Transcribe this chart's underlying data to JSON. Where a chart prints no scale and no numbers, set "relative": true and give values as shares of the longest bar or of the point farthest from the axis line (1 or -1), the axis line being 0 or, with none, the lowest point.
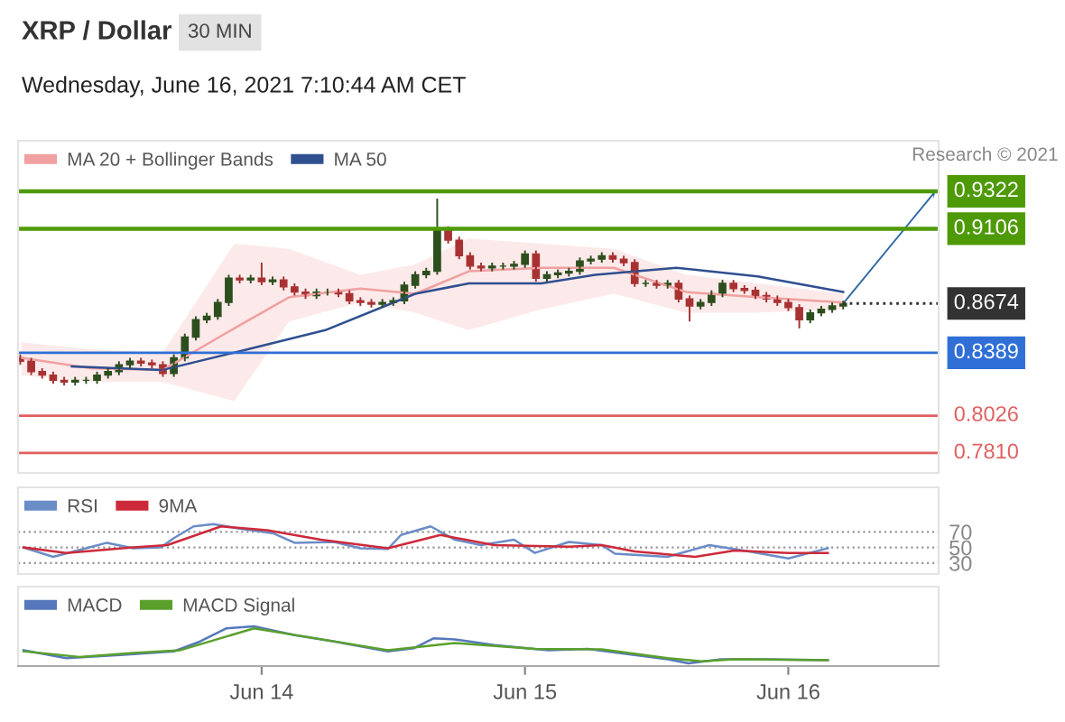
{
  "chart_data": [
    {
      "type": "candlestick",
      "title": "XRP / Dollar",
      "subtitle": "Wednesday, June 16, 2021 7:10:44 AM CET",
      "annotations": [
        "30 MIN",
        "Research © 2021"
      ],
      "x": [
        "2021-06-13T02:00",
        "2021-06-13T03:00",
        "2021-06-13T04:00",
        "2021-06-13T05:00",
        "2021-06-13T06:00",
        "2021-06-13T07:00",
        "2021-06-13T08:00",
        "2021-06-13T09:00",
        "2021-06-13T10:00",
        "2021-06-13T11:00",
        "2021-06-13T12:00",
        "2021-06-13T13:00",
        "2021-06-13T14:00",
        "2021-06-13T15:00",
        "2021-06-13T16:00",
        "2021-06-13T17:00",
        "2021-06-13T18:00",
        "2021-06-13T19:00",
        "2021-06-13T20:00",
        "2021-06-13T21:00",
        "2021-06-13T22:00",
        "2021-06-13T23:00",
        "2021-06-14T00:00",
        "2021-06-14T01:00",
        "2021-06-14T02:00",
        "2021-06-14T03:00",
        "2021-06-14T04:00",
        "2021-06-14T05:00",
        "2021-06-14T06:00",
        "2021-06-14T07:00",
        "2021-06-14T08:00",
        "2021-06-14T09:00",
        "2021-06-14T10:00",
        "2021-06-14T11:00",
        "2021-06-14T12:00",
        "2021-06-14T13:00",
        "2021-06-14T14:00",
        "2021-06-14T15:00",
        "2021-06-14T16:00",
        "2021-06-14T17:00",
        "2021-06-14T18:00",
        "2021-06-14T19:00",
        "2021-06-14T20:00",
        "2021-06-14T21:00",
        "2021-06-14T22:00",
        "2021-06-14T23:00",
        "2021-06-15T00:00",
        "2021-06-15T01:00",
        "2021-06-15T02:00",
        "2021-06-15T03:00",
        "2021-06-15T04:00",
        "2021-06-15T05:00",
        "2021-06-15T06:00",
        "2021-06-15T07:00",
        "2021-06-15T08:00",
        "2021-06-15T09:00",
        "2021-06-15T10:00",
        "2021-06-15T11:00",
        "2021-06-15T12:00",
        "2021-06-15T13:00",
        "2021-06-15T14:00",
        "2021-06-15T15:00",
        "2021-06-15T16:00",
        "2021-06-15T17:00",
        "2021-06-15T18:00",
        "2021-06-15T19:00",
        "2021-06-15T20:00",
        "2021-06-15T21:00",
        "2021-06-15T22:00",
        "2021-06-15T23:00",
        "2021-06-16T00:00",
        "2021-06-16T01:00",
        "2021-06-16T02:00",
        "2021-06-16T03:00",
        "2021-06-16T04:00",
        "2021-06-16T05:00"
      ],
      "ohlc": [
        [
          0.836,
          0.838,
          0.832,
          0.834
        ],
        [
          0.834,
          0.836,
          0.826,
          0.828
        ],
        [
          0.828,
          0.83,
          0.824,
          0.826
        ],
        [
          0.826,
          0.828,
          0.821,
          0.823
        ],
        [
          0.823,
          0.825,
          0.82,
          0.822
        ],
        [
          0.822,
          0.825,
          0.82,
          0.823
        ],
        [
          0.823,
          0.825,
          0.821,
          0.823
        ],
        [
          0.823,
          0.828,
          0.821,
          0.826
        ],
        [
          0.826,
          0.83,
          0.824,
          0.828
        ],
        [
          0.828,
          0.834,
          0.826,
          0.832
        ],
        [
          0.832,
          0.836,
          0.83,
          0.834
        ],
        [
          0.834,
          0.836,
          0.831,
          0.833
        ],
        [
          0.833,
          0.835,
          0.83,
          0.832
        ],
        [
          0.832,
          0.834,
          0.825,
          0.827
        ],
        [
          0.827,
          0.838,
          0.825,
          0.836
        ],
        [
          0.836,
          0.85,
          0.834,
          0.848
        ],
        [
          0.848,
          0.86,
          0.846,
          0.858
        ],
        [
          0.858,
          0.862,
          0.856,
          0.86
        ],
        [
          0.86,
          0.87,
          0.858,
          0.868
        ],
        [
          0.868,
          0.884,
          0.866,
          0.882
        ],
        [
          0.882,
          0.884,
          0.879,
          0.881
        ],
        [
          0.881,
          0.884,
          0.879,
          0.882
        ],
        [
          0.882,
          0.891,
          0.878,
          0.88
        ],
        [
          0.88,
          0.883,
          0.878,
          0.881
        ],
        [
          0.881,
          0.883,
          0.875,
          0.877
        ],
        [
          0.877,
          0.879,
          0.872,
          0.874
        ],
        [
          0.874,
          0.876,
          0.87,
          0.872
        ],
        [
          0.872,
          0.876,
          0.87,
          0.874
        ],
        [
          0.874,
          0.876,
          0.872,
          0.874
        ],
        [
          0.874,
          0.876,
          0.871,
          0.873
        ],
        [
          0.873,
          0.875,
          0.867,
          0.869
        ],
        [
          0.869,
          0.871,
          0.866,
          0.868
        ],
        [
          0.868,
          0.87,
          0.865,
          0.867
        ],
        [
          0.867,
          0.87,
          0.865,
          0.868
        ],
        [
          0.868,
          0.871,
          0.866,
          0.869
        ],
        [
          0.869,
          0.88,
          0.867,
          0.878
        ],
        [
          0.878,
          0.886,
          0.876,
          0.884
        ],
        [
          0.884,
          0.888,
          0.882,
          0.886
        ],
        [
          0.886,
          0.928,
          0.884,
          0.91
        ],
        [
          0.91,
          0.912,
          0.902,
          0.904
        ],
        [
          0.904,
          0.906,
          0.893,
          0.895
        ],
        [
          0.895,
          0.897,
          0.887,
          0.889
        ],
        [
          0.889,
          0.891,
          0.886,
          0.888
        ],
        [
          0.888,
          0.891,
          0.886,
          0.889
        ],
        [
          0.889,
          0.891,
          0.887,
          0.889
        ],
        [
          0.889,
          0.892,
          0.887,
          0.89
        ],
        [
          0.89,
          0.898,
          0.888,
          0.896
        ],
        [
          0.896,
          0.898,
          0.88,
          0.882
        ],
        [
          0.882,
          0.886,
          0.88,
          0.884
        ],
        [
          0.884,
          0.887,
          0.882,
          0.885
        ],
        [
          0.885,
          0.888,
          0.883,
          0.886
        ],
        [
          0.886,
          0.894,
          0.884,
          0.892
        ],
        [
          0.892,
          0.895,
          0.89,
          0.893
        ],
        [
          0.893,
          0.897,
          0.891,
          0.895
        ],
        [
          0.895,
          0.897,
          0.891,
          0.893
        ],
        [
          0.893,
          0.895,
          0.889,
          0.891
        ],
        [
          0.891,
          0.893,
          0.877,
          0.879
        ],
        [
          0.879,
          0.881,
          0.877,
          0.879
        ],
        [
          0.879,
          0.881,
          0.876,
          0.878
        ],
        [
          0.878,
          0.881,
          0.876,
          0.879
        ],
        [
          0.879,
          0.881,
          0.868,
          0.87
        ],
        [
          0.87,
          0.872,
          0.857,
          0.866
        ],
        [
          0.866,
          0.87,
          0.864,
          0.868
        ],
        [
          0.868,
          0.875,
          0.866,
          0.873
        ],
        [
          0.873,
          0.881,
          0.871,
          0.879
        ],
        [
          0.879,
          0.881,
          0.874,
          0.876
        ],
        [
          0.876,
          0.878,
          0.873,
          0.875
        ],
        [
          0.875,
          0.877,
          0.87,
          0.872
        ],
        [
          0.872,
          0.874,
          0.868,
          0.87
        ],
        [
          0.87,
          0.872,
          0.866,
          0.868
        ],
        [
          0.868,
          0.87,
          0.863,
          0.865
        ],
        [
          0.865,
          0.867,
          0.853,
          0.858
        ],
        [
          0.858,
          0.864,
          0.856,
          0.862
        ],
        [
          0.862,
          0.866,
          0.86,
          0.864
        ],
        [
          0.864,
          0.868,
          0.862,
          0.866
        ],
        [
          0.866,
          0.869,
          0.864,
          0.8674
        ]
      ],
      "series": [
        {
          "name": "MA 20 + Bollinger Bands",
          "type": "line",
          "color": "#f0a0a0",
          "x": [
            "2021-06-13T02:06",
            "2021-06-13T08:24",
            "2021-06-13T15:00",
            "2021-06-13T21:30",
            "2021-06-14T02:30",
            "2021-06-14T09:00",
            "2021-06-14T14:00",
            "2021-06-14T18:54",
            "2021-06-15T01:30",
            "2021-06-15T08:06",
            "2021-06-15T14:42",
            "2021-06-15T21:12",
            "2021-06-16T05:00"
          ],
          "values": [
            0.836,
            0.83,
            0.829,
            0.853,
            0.871,
            0.876,
            0.873,
            0.886,
            0.888,
            0.888,
            0.874,
            0.871,
            0.868
          ],
          "lower": [
            0.826,
            0.822,
            0.822,
            0.811,
            0.857,
            0.868,
            0.862,
            0.852,
            0.864,
            0.873,
            0.862,
            0.862,
            0.864
          ],
          "upper": [
            0.845,
            0.841,
            0.839,
            0.902,
            0.899,
            0.884,
            0.89,
            0.905,
            0.902,
            0.899,
            0.884,
            0.879,
            0.873
          ]
        },
        {
          "name": "MA 50",
          "type": "line",
          "color": "#2f4f8f",
          "x": [
            "2021-06-13T06:42",
            "2021-06-13T15:00",
            "2021-06-13T21:30",
            "2021-06-14T05:48",
            "2021-06-14T14:00",
            "2021-06-14T18:54",
            "2021-06-15T01:30",
            "2021-06-15T06:24",
            "2021-06-15T13:48",
            "2021-06-15T21:12",
            "2021-06-16T05:00"
          ],
          "values": [
            0.831,
            0.829,
            0.839,
            0.852,
            0.873,
            0.879,
            0.879,
            0.884,
            0.888,
            0.883,
            0.874
          ]
        }
      ],
      "ref_lines": [
        {
          "axis": "y",
          "value": 0.9322,
          "label": "0.9322",
          "color": "#4e9a06",
          "line_style": "solid"
        },
        {
          "axis": "y",
          "value": 0.9106,
          "label": "0.9106",
          "color": "#4e9a06",
          "line_style": "solid"
        },
        {
          "axis": "y",
          "value": 0.8674,
          "label": "0.8674",
          "color": "#333333",
          "line_style": "dotted"
        },
        {
          "axis": "y",
          "value": 0.8389,
          "label": "0.8389",
          "color": "#2f6fd6",
          "line_style": "solid"
        },
        {
          "axis": "y",
          "value": 0.8026,
          "label": "0.8026",
          "color": "#e06060",
          "line_style": "solid"
        },
        {
          "axis": "y",
          "value": 0.781,
          "label": "0.7810",
          "color": "#e06060",
          "line_style": "solid"
        }
      ],
      "xlim": [
        "2021-06-13T01:48",
        "2021-06-16T13:42"
      ],
      "ylim": [
        0.7695,
        0.9614
      ],
      "tick_labels": false,
      "legend": "top left",
      "grid": false
    },
    {
      "type": "line",
      "series": [
        {
          "name": "RSI",
          "color": "#6a8cc7",
          "x": [
            "2021-06-13T02:18",
            "2021-06-13T05:00",
            "2021-06-13T08:00",
            "2021-06-13T09:54",
            "2021-06-13T12:18",
            "2021-06-13T14:48",
            "2021-06-13T16:00",
            "2021-06-13T17:48",
            "2021-06-13T19:36",
            "2021-06-13T22:00",
            "2021-06-14T01:06",
            "2021-06-14T03:00",
            "2021-06-14T06:36",
            "2021-06-14T09:00",
            "2021-06-14T11:30",
            "2021-06-14T12:42",
            "2021-06-14T15:24",
            "2021-06-14T17:36",
            "2021-06-14T20:00",
            "2021-06-14T23:00",
            "2021-06-15T00:54",
            "2021-06-15T04:00",
            "2021-06-15T07:00",
            "2021-06-15T08:12",
            "2021-06-15T13:00",
            "2021-06-15T16:48",
            "2021-06-15T20:24",
            "2021-06-16T00:00",
            "2021-06-16T03:36"
          ],
          "values": [
            50,
            38,
            49,
            56,
            49,
            50,
            62,
            77,
            80,
            74,
            68,
            56,
            57,
            49,
            48,
            66,
            77,
            60,
            53,
            60,
            43,
            57,
            53,
            42,
            38,
            53,
            45,
            36,
            49
          ]
        },
        {
          "name": "9MA",
          "color": "#cc2a3a",
          "x": [
            "2021-06-13T02:18",
            "2021-06-13T06:12",
            "2021-06-13T12:18",
            "2021-06-13T15:24",
            "2021-06-13T20:18",
            "2021-06-14T00:30",
            "2021-06-14T05:24",
            "2021-06-14T11:30",
            "2021-06-14T16:18",
            "2021-06-14T21:12",
            "2021-06-15T04:00",
            "2021-06-15T07:00",
            "2021-06-15T10:00",
            "2021-06-15T15:30",
            "2021-06-15T19:06",
            "2021-06-16T00:00",
            "2021-06-16T03:36"
          ],
          "values": [
            50,
            43,
            50,
            53,
            77,
            72,
            60,
            49,
            66,
            53,
            51,
            53,
            45,
            38,
            46,
            43,
            43
          ]
        }
      ],
      "xlim": [
        "2021-06-13T01:48",
        "2021-06-16T13:42"
      ],
      "ylim": [
        16,
        127
      ],
      "yticks": [
        30,
        50,
        70
      ],
      "grid": "y",
      "tick_labels": "y",
      "legend": "top left"
    },
    {
      "type": "line",
      "relative": true,
      "series": [
        {
          "name": "MACD",
          "color": "#5577bb",
          "x": [
            "2021-06-13T02:18",
            "2021-06-13T06:12",
            "2021-06-13T11:06",
            "2021-06-13T16:00",
            "2021-06-13T18:24",
            "2021-06-13T20:48",
            "2021-06-13T23:18",
            "2021-06-14T03:00",
            "2021-06-14T06:36",
            "2021-06-14T11:30",
            "2021-06-14T13:54",
            "2021-06-14T15:42",
            "2021-06-14T17:36",
            "2021-06-14T21:12",
            "2021-06-15T02:06",
            "2021-06-15T05:42",
            "2021-06-15T10:00",
            "2021-06-15T13:00",
            "2021-06-15T14:54",
            "2021-06-15T17:54",
            "2021-06-15T22:12",
            "2021-06-16T03:36"
          ],
          "values": [
            0.4,
            0.2,
            0.28,
            0.37,
            0.62,
            0.95,
            1.0,
            0.78,
            0.62,
            0.37,
            0.45,
            0.7,
            0.67,
            0.53,
            0.4,
            0.43,
            0.28,
            0.17,
            0.07,
            0.17,
            0.17,
            0.15
          ]
        },
        {
          "name": "MACD Signal",
          "color": "#5aa02c",
          "x": [
            "2021-06-13T02:18",
            "2021-06-13T07:24",
            "2021-06-13T12:18",
            "2021-06-13T16:36",
            "2021-06-13T23:18",
            "2021-06-14T04:12",
            "2021-06-14T11:30",
            "2021-06-14T17:36",
            "2021-06-15T00:54",
            "2021-06-15T07:00",
            "2021-06-15T13:00",
            "2021-06-15T16:06",
            "2021-06-15T19:06",
            "2021-06-16T03:36"
          ],
          "values": [
            0.37,
            0.23,
            0.33,
            0.4,
            0.95,
            0.73,
            0.4,
            0.58,
            0.43,
            0.42,
            0.2,
            0.12,
            0.17,
            0.15
          ]
        }
      ],
      "xlim": [
        "2021-06-13T01:48",
        "2021-06-16T13:42"
      ],
      "xticks": [
        {
          "value": "2021-06-14",
          "label": "Jun 14"
        },
        {
          "value": "2021-06-15",
          "label": "Jun 15"
        },
        {
          "value": "2021-06-16",
          "label": "Jun 16"
        }
      ],
      "tick_labels": "x",
      "legend": "top left"
    }
  ]
}
